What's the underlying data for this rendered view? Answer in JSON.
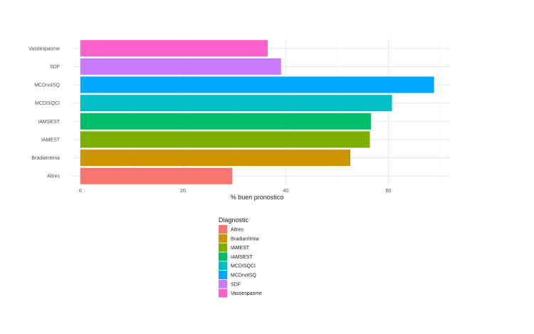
{
  "chart_data": {
    "type": "bar",
    "orientation": "horizontal",
    "categories": [
      "Altres",
      "Bradiarritmia",
      "IAMEST",
      "IAMSEST",
      "MCDISQCI",
      "MCDnoISQ",
      "SDF",
      "Vasoespasme"
    ],
    "values": [
      29.6,
      52.6,
      56.4,
      56.6,
      60.7,
      68.9,
      39.1,
      36.5
    ],
    "colors": [
      "#F8766D",
      "#CD9600",
      "#7CAE00",
      "#00BE67",
      "#00BFC4",
      "#00A9FF",
      "#C77CFF",
      "#FF61CC"
    ],
    "xlabel": "% buen pronostico",
    "ylabel": "",
    "xlim": [
      -1.5,
      72
    ],
    "x_ticks": [
      "0",
      "20",
      "40",
      "60"
    ],
    "x_tick_values": [
      0,
      20,
      40,
      60
    ],
    "grid": true,
    "legend": {
      "title": "Diagnostic",
      "placement": "bottom",
      "entries": [
        "Altres",
        "Bradiarritmia",
        "IAMEST",
        "IAMSEST",
        "MCDISQCI",
        "MCDnoISQ",
        "SDF",
        "Vasoespasme"
      ]
    }
  }
}
